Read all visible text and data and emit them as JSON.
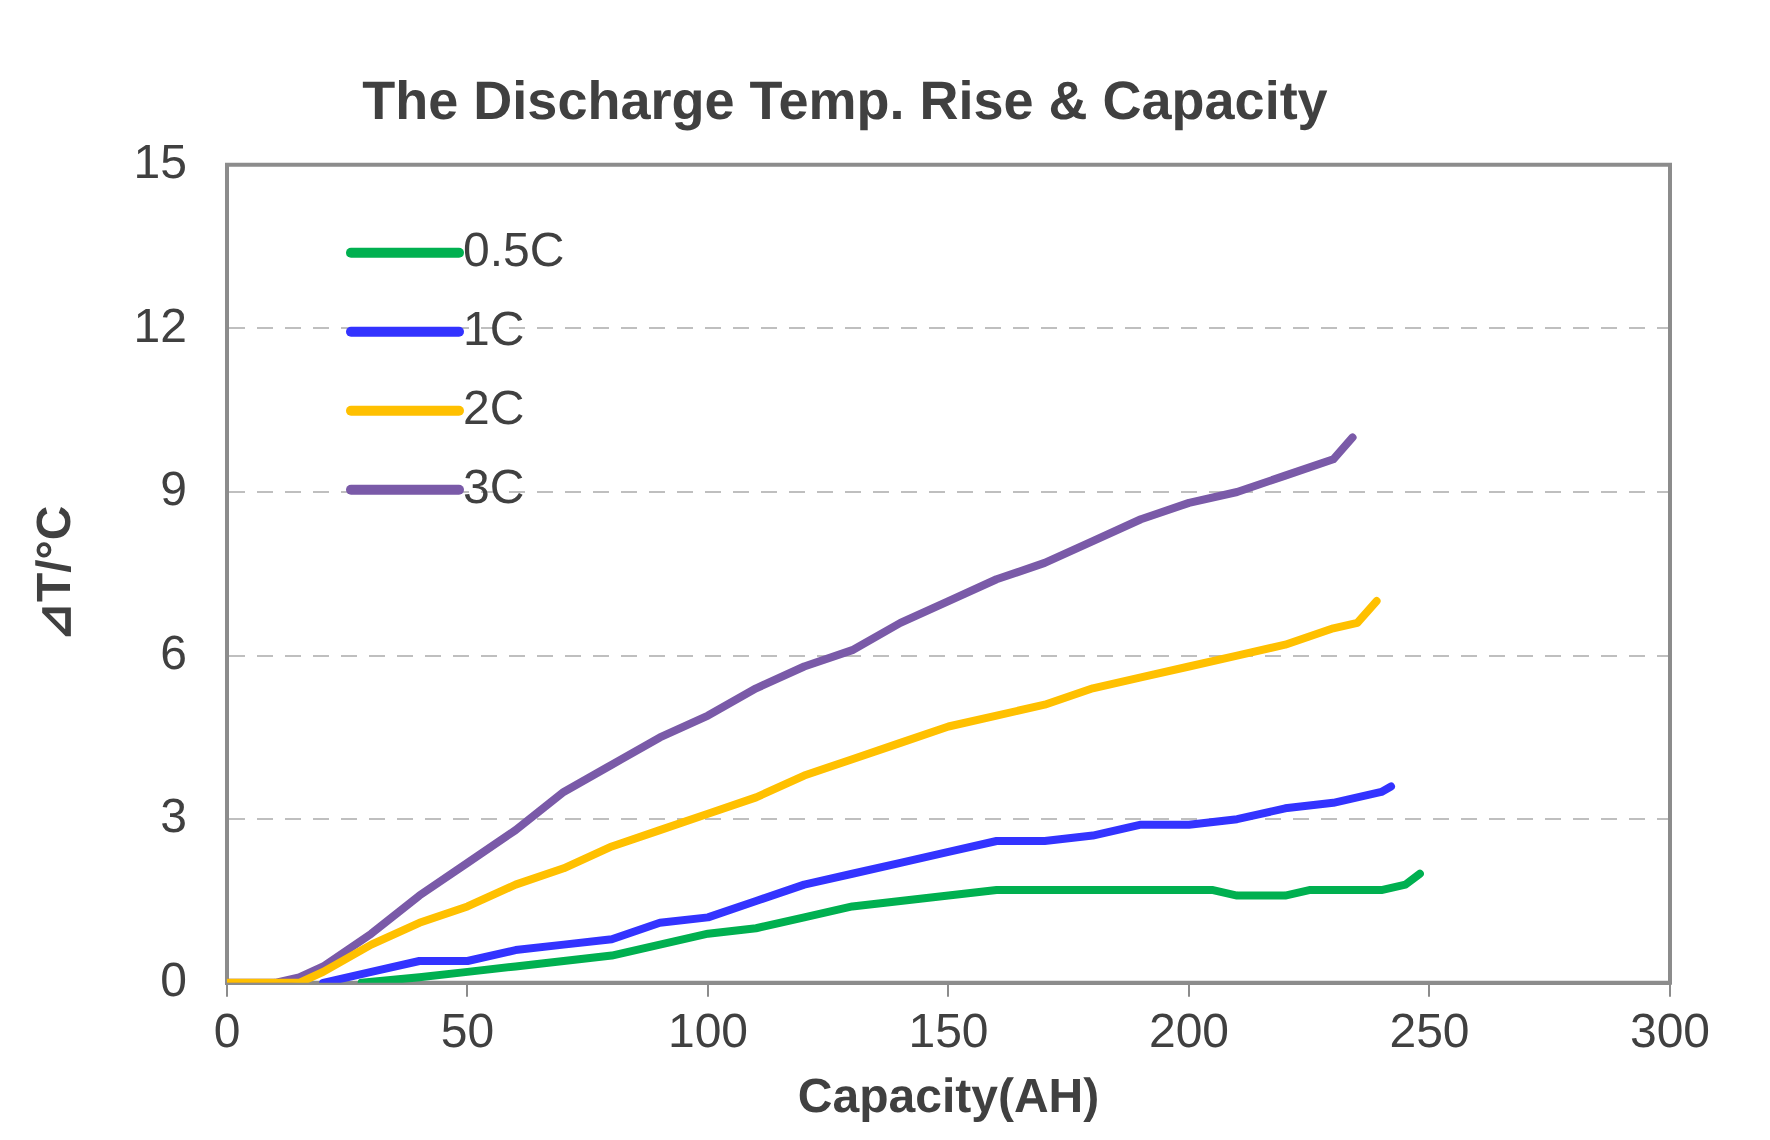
{
  "chart_data": {
    "type": "line",
    "title": "The Discharge Temp. Rise & Capacity",
    "xlabel": "Capacity(AH)",
    "ylabel": "⊿T/°C",
    "xlim": [
      0,
      300
    ],
    "xticks": [
      0,
      50,
      100,
      150,
      200,
      250,
      300
    ],
    "ylim": [
      0,
      15
    ],
    "yticks": [
      0,
      3,
      6,
      9,
      12,
      15
    ],
    "grid": "y",
    "legend": "top left",
    "marker": "none",
    "line_style": "solid",
    "series": [
      {
        "name": "0.5C",
        "color": "#00b050",
        "x": [
          28,
          40,
          50,
          60,
          70,
          80,
          90,
          100,
          110,
          120,
          130,
          140,
          150,
          160,
          170,
          180,
          190,
          200,
          205,
          210,
          220,
          225,
          240,
          245,
          248
        ],
        "values": [
          0,
          0.1,
          0.2,
          0.3,
          0.4,
          0.5,
          0.7,
          0.9,
          1.0,
          1.2,
          1.4,
          1.5,
          1.6,
          1.7,
          1.7,
          1.7,
          1.7,
          1.7,
          1.7,
          1.6,
          1.6,
          1.7,
          1.7,
          1.8,
          2.0
        ]
      },
      {
        "name": "1C",
        "color": "#3333ff",
        "x": [
          20,
          30,
          40,
          50,
          60,
          70,
          80,
          90,
          100,
          110,
          120,
          130,
          140,
          150,
          160,
          170,
          180,
          190,
          200,
          210,
          220,
          230,
          240,
          242
        ],
        "values": [
          0,
          0.2,
          0.4,
          0.4,
          0.6,
          0.7,
          0.8,
          1.1,
          1.2,
          1.5,
          1.8,
          2.0,
          2.2,
          2.4,
          2.6,
          2.6,
          2.7,
          2.9,
          2.9,
          3.0,
          3.2,
          3.3,
          3.5,
          3.6
        ]
      },
      {
        "name": "2C",
        "color": "#ffc000",
        "x": [
          0,
          10,
          15,
          20,
          30,
          40,
          50,
          60,
          70,
          80,
          90,
          100,
          110,
          120,
          130,
          140,
          150,
          160,
          170,
          180,
          190,
          200,
          210,
          220,
          230,
          235,
          239
        ],
        "values": [
          0,
          0,
          0,
          0.2,
          0.7,
          1.1,
          1.4,
          1.8,
          2.1,
          2.5,
          2.8,
          3.1,
          3.4,
          3.8,
          4.1,
          4.4,
          4.7,
          4.9,
          5.1,
          5.4,
          5.6,
          5.8,
          6.0,
          6.2,
          6.5,
          6.6,
          7.0
        ]
      },
      {
        "name": "3C",
        "color": "#7a5aa8",
        "x": [
          0,
          10,
          15,
          20,
          30,
          40,
          50,
          60,
          70,
          80,
          90,
          100,
          110,
          120,
          130,
          140,
          150,
          160,
          170,
          180,
          190,
          200,
          210,
          220,
          230,
          234
        ],
        "values": [
          0,
          0,
          0.1,
          0.3,
          0.9,
          1.6,
          2.2,
          2.8,
          3.5,
          4.0,
          4.5,
          4.9,
          5.4,
          5.8,
          6.1,
          6.6,
          7.0,
          7.4,
          7.7,
          8.1,
          8.5,
          8.8,
          9.0,
          9.3,
          9.6,
          10.0
        ]
      }
    ]
  }
}
